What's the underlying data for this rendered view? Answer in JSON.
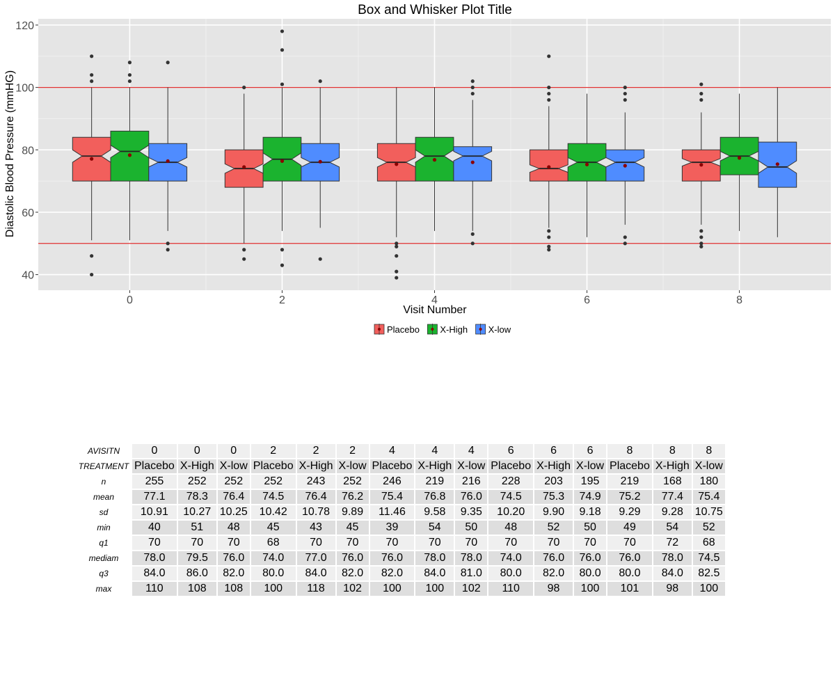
{
  "chart_data": {
    "type": "box",
    "title": "Box and Whisker Plot Title",
    "xlabel": "Visit Number",
    "ylabel": "Diastolic Blood Pressure (mmHG)",
    "ylim": [
      35,
      122
    ],
    "xlim": [
      -1.2,
      9.2
    ],
    "x_ticks": [
      0,
      2,
      4,
      6,
      8
    ],
    "y_ticks": [
      40,
      60,
      80,
      100,
      120
    ],
    "reference_lines": [
      50,
      100
    ],
    "legend": [
      "Placebo",
      "X-High",
      "X-low"
    ],
    "legend_position": "bottom",
    "colors": {
      "Placebo": "#f25f5c",
      "X-High": "#1bb32f",
      "X-low": "#4f8cff",
      "reference_line": "#e03030",
      "panel": "#e5e5e5",
      "outlier": "#333333",
      "mean_point": "#8b0000"
    },
    "groups": [
      {
        "visit": 0,
        "treatment": "Placebo",
        "min": 51,
        "q1": 70,
        "median": 78,
        "q3": 84,
        "max": 100,
        "mean": 77.1,
        "notch": [
          76.0,
          80.0
        ],
        "outliers": [
          40,
          46,
          102,
          104,
          110
        ]
      },
      {
        "visit": 0,
        "treatment": "X-High",
        "min": 51,
        "q1": 70,
        "median": 79.5,
        "q3": 86,
        "max": 100,
        "mean": 78.3,
        "notch": [
          77.5,
          81.5
        ],
        "outliers": [
          102,
          104,
          108
        ]
      },
      {
        "visit": 0,
        "treatment": "X-low",
        "min": 54,
        "q1": 70,
        "median": 76,
        "q3": 82,
        "max": 100,
        "mean": 76.4,
        "notch": [
          74.5,
          77.5
        ],
        "outliers": [
          48,
          50,
          108
        ]
      },
      {
        "visit": 2,
        "treatment": "Placebo",
        "min": 50,
        "q1": 68,
        "median": 74,
        "q3": 80,
        "max": 98,
        "mean": 74.5,
        "notch": [
          72.5,
          75.5
        ],
        "outliers": [
          45,
          48,
          100
        ]
      },
      {
        "visit": 2,
        "treatment": "X-High",
        "min": 54,
        "q1": 70,
        "median": 77,
        "q3": 84,
        "max": 100,
        "mean": 76.4,
        "notch": [
          75.0,
          79.0
        ],
        "outliers": [
          43,
          48,
          101,
          112,
          118
        ]
      },
      {
        "visit": 2,
        "treatment": "X-low",
        "min": 55,
        "q1": 70,
        "median": 76,
        "q3": 82,
        "max": 100,
        "mean": 76.2,
        "notch": [
          74.5,
          77.5
        ],
        "outliers": [
          45,
          102
        ]
      },
      {
        "visit": 4,
        "treatment": "Placebo",
        "min": 52,
        "q1": 70,
        "median": 76,
        "q3": 82,
        "max": 100,
        "mean": 75.4,
        "notch": [
          74.5,
          77.5
        ],
        "outliers": [
          39,
          41,
          46,
          49,
          50
        ]
      },
      {
        "visit": 4,
        "treatment": "X-High",
        "min": 54,
        "q1": 70,
        "median": 78,
        "q3": 84,
        "max": 100,
        "mean": 76.8,
        "notch": [
          76.0,
          80.0
        ],
        "outliers": []
      },
      {
        "visit": 4,
        "treatment": "X-low",
        "min": 54,
        "q1": 70,
        "median": 78,
        "q3": 81,
        "max": 96,
        "mean": 76.0,
        "notch": [
          76.5,
          79.5
        ],
        "outliers": [
          50,
          53,
          98,
          100,
          102
        ]
      },
      {
        "visit": 6,
        "treatment": "Placebo",
        "min": 55,
        "q1": 70,
        "median": 74,
        "q3": 80,
        "max": 94,
        "mean": 74.5,
        "notch": [
          72.8,
          75.2
        ],
        "outliers": [
          48,
          49,
          52,
          54,
          96,
          98,
          100,
          110
        ]
      },
      {
        "visit": 6,
        "treatment": "X-High",
        "min": 52,
        "q1": 70,
        "median": 76,
        "q3": 82,
        "max": 98,
        "mean": 75.3,
        "notch": [
          74.5,
          77.5
        ],
        "outliers": []
      },
      {
        "visit": 6,
        "treatment": "X-low",
        "min": 56,
        "q1": 70,
        "median": 76,
        "q3": 80,
        "max": 92,
        "mean": 74.9,
        "notch": [
          74.5,
          77.5
        ],
        "outliers": [
          50,
          52,
          96,
          98,
          100
        ]
      },
      {
        "visit": 8,
        "treatment": "Placebo",
        "min": 56,
        "q1": 70,
        "median": 76,
        "q3": 80,
        "max": 92,
        "mean": 75.2,
        "notch": [
          74.8,
          77.2
        ],
        "outliers": [
          49,
          50,
          52,
          54,
          96,
          98,
          101
        ]
      },
      {
        "visit": 8,
        "treatment": "X-High",
        "min": 54,
        "q1": 72,
        "median": 78,
        "q3": 84,
        "max": 98,
        "mean": 77.4,
        "notch": [
          76.5,
          79.5
        ],
        "outliers": []
      },
      {
        "visit": 8,
        "treatment": "X-low",
        "min": 52,
        "q1": 68,
        "median": 74.5,
        "q3": 82.5,
        "max": 100,
        "mean": 75.4,
        "notch": [
          72.5,
          76.5
        ],
        "outliers": []
      }
    ]
  },
  "table": {
    "rows": [
      {
        "label": "AVISITN",
        "values": [
          "0",
          "0",
          "0",
          "2",
          "2",
          "2",
          "4",
          "4",
          "4",
          "6",
          "6",
          "6",
          "8",
          "8",
          "8"
        ]
      },
      {
        "label": "TREATMENT",
        "values": [
          "Placebo",
          "X-High",
          "X-low",
          "Placebo",
          "X-High",
          "X-low",
          "Placebo",
          "X-High",
          "X-low",
          "Placebo",
          "X-High",
          "X-low",
          "Placebo",
          "X-High",
          "X-low"
        ]
      },
      {
        "label": "n",
        "values": [
          "255",
          "252",
          "252",
          "252",
          "243",
          "252",
          "246",
          "219",
          "216",
          "228",
          "203",
          "195",
          "219",
          "168",
          "180"
        ]
      },
      {
        "label": "mean",
        "values": [
          "77.1",
          "78.3",
          "76.4",
          "74.5",
          "76.4",
          "76.2",
          "75.4",
          "76.8",
          "76.0",
          "74.5",
          "75.3",
          "74.9",
          "75.2",
          "77.4",
          "75.4"
        ]
      },
      {
        "label": "sd",
        "values": [
          "10.91",
          "10.27",
          "10.25",
          "10.42",
          "10.78",
          "9.89",
          "11.46",
          "9.58",
          "9.35",
          "10.20",
          "9.90",
          "9.18",
          "9.29",
          "9.28",
          "10.75"
        ]
      },
      {
        "label": "min",
        "values": [
          "40",
          "51",
          "48",
          "45",
          "43",
          "45",
          "39",
          "54",
          "50",
          "48",
          "52",
          "50",
          "49",
          "54",
          "52"
        ]
      },
      {
        "label": "q1",
        "values": [
          "70",
          "70",
          "70",
          "68",
          "70",
          "70",
          "70",
          "70",
          "70",
          "70",
          "70",
          "70",
          "70",
          "72",
          "68"
        ]
      },
      {
        "label": "mediam",
        "values": [
          "78.0",
          "79.5",
          "76.0",
          "74.0",
          "77.0",
          "76.0",
          "76.0",
          "78.0",
          "78.0",
          "74.0",
          "76.0",
          "76.0",
          "76.0",
          "78.0",
          "74.5"
        ]
      },
      {
        "label": "q3",
        "values": [
          "84.0",
          "86.0",
          "82.0",
          "80.0",
          "84.0",
          "82.0",
          "82.0",
          "84.0",
          "81.0",
          "80.0",
          "82.0",
          "80.0",
          "80.0",
          "84.0",
          "82.5"
        ]
      },
      {
        "label": "max",
        "values": [
          "110",
          "108",
          "108",
          "100",
          "118",
          "102",
          "100",
          "100",
          "102",
          "110",
          "98",
          "100",
          "101",
          "98",
          "100"
        ]
      }
    ]
  }
}
